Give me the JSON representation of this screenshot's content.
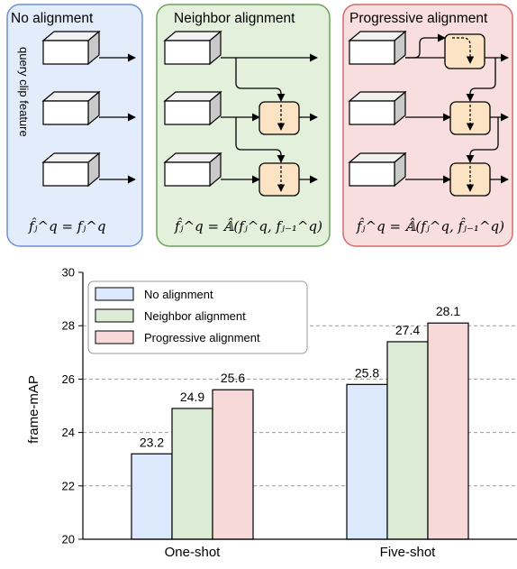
{
  "panels": [
    {
      "title": "No alignment",
      "side_label": "query clip feature",
      "formula": "f̂ⱼ^q = fⱼ^q",
      "fill": "#e3ecfb",
      "stroke": "#6d8fd3"
    },
    {
      "title": "Neighbor alignment",
      "formula": "f̂ⱼ^q = 𝔸̂(fⱼ^q, fⱼ₋₁^q)",
      "fill": "#e3f0dc",
      "stroke": "#6aa25a"
    },
    {
      "title": "Progressive alignment",
      "formula": "f̂ⱼ^q = 𝔸̂(fⱼ^q, f̂ⱼ₋₁^q)",
      "fill": "#f8dede",
      "stroke": "#d46a6a"
    }
  ],
  "module_fill": "#fbe3c4",
  "chart_data": {
    "type": "bar",
    "categories": [
      "One-shot",
      "Five-shot"
    ],
    "series": [
      {
        "name": "No alignment",
        "values": [
          23.2,
          25.8
        ],
        "color": "#dce8fb"
      },
      {
        "name": "Neighbor alignment",
        "values": [
          24.9,
          27.4
        ],
        "color": "#dcebd6"
      },
      {
        "name": "Progressive alignment",
        "values": [
          25.6,
          28.1
        ],
        "color": "#f7d9d9"
      }
    ],
    "data_labels": [
      [
        "23.2",
        "25.8"
      ],
      [
        "24.9",
        "27.4"
      ],
      [
        "25.6",
        "28.1"
      ]
    ],
    "ylabel": "frame-mAP",
    "ylim": [
      20,
      30
    ],
    "yticks": [
      20,
      22,
      24,
      26,
      28,
      30
    ],
    "ytick_labels": [
      "20",
      "22",
      "24",
      "26",
      "28",
      "30"
    ],
    "grid": true,
    "legend_position": "top-left"
  }
}
